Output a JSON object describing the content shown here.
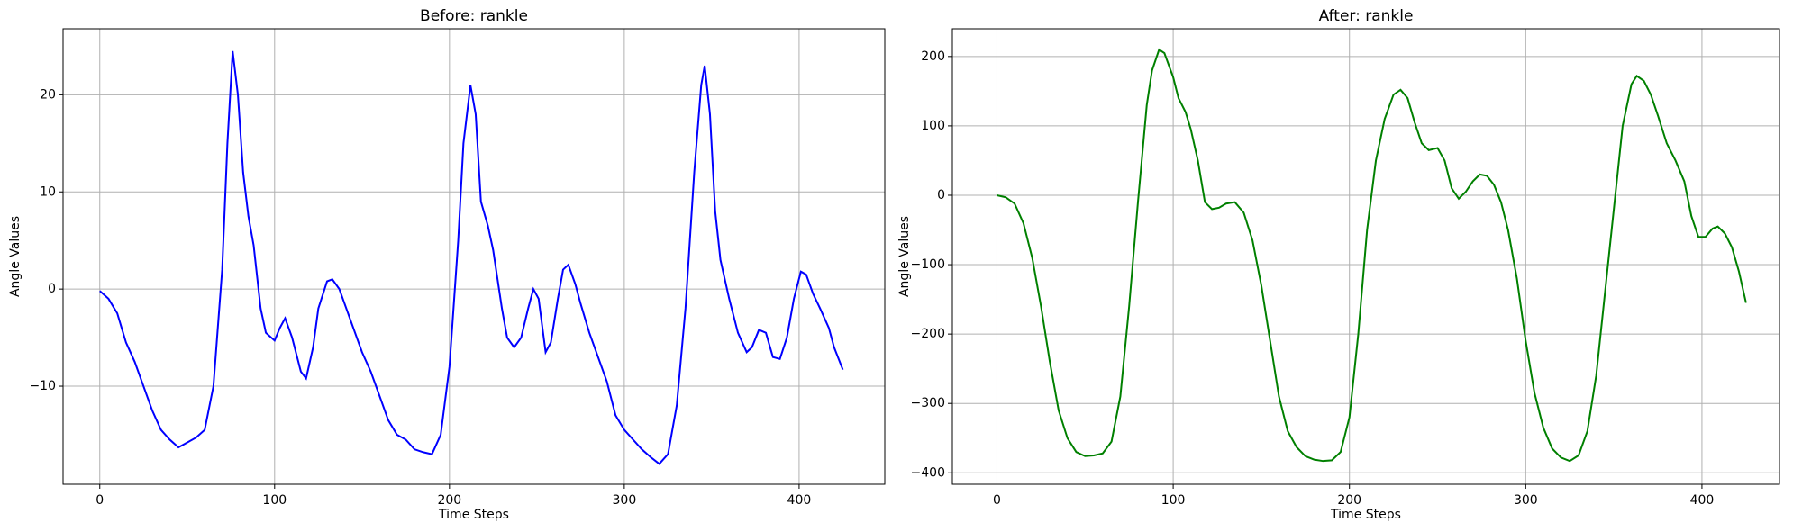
{
  "chart_data": [
    {
      "type": "line",
      "title": "Before: rankle",
      "xlabel": "Time Steps",
      "ylabel": "Angle Values",
      "color": "#0000ff",
      "grid": true,
      "xlim": [
        -21,
        449
      ],
      "ylim": [
        -20.1,
        26.8
      ],
      "xticks": [
        0,
        100,
        200,
        300,
        400
      ],
      "yticks": [
        {
          "value": -10,
          "label": "−10"
        },
        0,
        10,
        20
      ],
      "x": [
        0,
        5,
        10,
        15,
        20,
        25,
        30,
        35,
        40,
        45,
        50,
        55,
        60,
        65,
        70,
        73,
        76,
        79,
        82,
        85,
        88,
        92,
        95,
        100,
        103,
        106,
        110,
        115,
        118,
        122,
        125,
        130,
        133,
        137,
        140,
        145,
        150,
        155,
        160,
        165,
        170,
        175,
        180,
        185,
        190,
        195,
        200,
        205,
        208,
        212,
        215,
        218,
        222,
        225,
        230,
        233,
        237,
        241,
        245,
        248,
        251,
        255,
        258,
        262,
        265,
        268,
        272,
        275,
        280,
        285,
        290,
        295,
        300,
        305,
        310,
        315,
        320,
        325,
        330,
        335,
        340,
        344,
        346,
        349,
        352,
        355,
        360,
        365,
        370,
        373,
        377,
        381,
        385,
        389,
        393,
        397,
        401,
        404,
        408,
        412,
        417,
        420,
        425
      ],
      "values": [
        -0.2,
        -1,
        -2.5,
        -5.5,
        -7.5,
        -10,
        -12.5,
        -14.5,
        -15.5,
        -16.3,
        -15.8,
        -15.3,
        -14.5,
        -10,
        2,
        15,
        24.5,
        20,
        12,
        7.5,
        4.5,
        -2,
        -4.5,
        -5.3,
        -4,
        -3,
        -5,
        -8.5,
        -9.2,
        -6,
        -2,
        0.8,
        1,
        0,
        -1.5,
        -4,
        -6.5,
        -8.5,
        -11,
        -13.5,
        -15,
        -15.5,
        -16.5,
        -16.8,
        -17,
        -15,
        -8,
        5,
        15,
        21,
        18,
        9,
        6.5,
        4,
        -2,
        -5,
        -6,
        -5,
        -2,
        0,
        -1,
        -6.5,
        -5.5,
        -1,
        2,
        2.5,
        0.5,
        -1.5,
        -4.5,
        -7,
        -9.5,
        -13,
        -14.5,
        -15.5,
        -16.5,
        -17.3,
        -18,
        -17,
        -12,
        -2,
        12,
        21,
        23,
        18,
        8,
        3,
        -1,
        -4.5,
        -6.5,
        -6,
        -4.2,
        -4.5,
        -7,
        -7.2,
        -5,
        -1,
        1.8,
        1.5,
        -0.5,
        -2,
        -4,
        -6,
        -8.3
      ]
    },
    {
      "type": "line",
      "title": "After: rankle",
      "xlabel": "Time Steps",
      "ylabel": "Angle Values",
      "color": "#008000",
      "grid": true,
      "xlim": [
        -25.3,
        444
      ],
      "ylim": [
        -416.5,
        240
      ],
      "xticks": [
        0,
        100,
        200,
        300,
        400
      ],
      "yticks": [
        {
          "value": -400,
          "label": "−400"
        },
        {
          "value": -300,
          "label": "−300"
        },
        {
          "value": -200,
          "label": "−200"
        },
        {
          "value": -100,
          "label": "−100"
        },
        0,
        100,
        200
      ],
      "x": [
        0,
        5,
        10,
        15,
        20,
        25,
        30,
        35,
        40,
        45,
        50,
        55,
        60,
        65,
        70,
        75,
        80,
        85,
        88,
        92,
        95,
        100,
        103,
        107,
        110,
        114,
        118,
        122,
        126,
        130,
        135,
        140,
        145,
        150,
        155,
        160,
        165,
        170,
        175,
        180,
        185,
        190,
        195,
        200,
        205,
        210,
        215,
        220,
        225,
        229,
        233,
        237,
        241,
        245,
        250,
        254,
        258,
        262,
        266,
        270,
        274,
        278,
        282,
        286,
        290,
        295,
        300,
        305,
        310,
        315,
        320,
        325,
        330,
        335,
        340,
        345,
        350,
        355,
        360,
        363,
        367,
        371,
        375,
        380,
        385,
        390,
        394,
        398,
        402,
        406,
        409,
        413,
        417,
        421,
        425
      ],
      "values": [
        0,
        -3,
        -12,
        -40,
        -90,
        -160,
        -240,
        -310,
        -350,
        -370,
        -376,
        -375,
        -372,
        -355,
        -290,
        -160,
        -10,
        130,
        180,
        210,
        205,
        170,
        140,
        120,
        95,
        50,
        -10,
        -20,
        -18,
        -12,
        -10,
        -25,
        -65,
        -130,
        -210,
        -290,
        -340,
        -363,
        -376,
        -381,
        -383,
        -382,
        -370,
        -320,
        -200,
        -50,
        50,
        110,
        145,
        152,
        140,
        105,
        75,
        65,
        68,
        50,
        10,
        -5,
        5,
        20,
        30,
        28,
        15,
        -10,
        -50,
        -120,
        -210,
        -285,
        -335,
        -365,
        -378,
        -383,
        -375,
        -340,
        -260,
        -140,
        -20,
        100,
        160,
        172,
        165,
        145,
        115,
        75,
        50,
        20,
        -30,
        -60,
        -60,
        -48,
        -45,
        -55,
        -75,
        -110,
        -155
      ]
    }
  ]
}
